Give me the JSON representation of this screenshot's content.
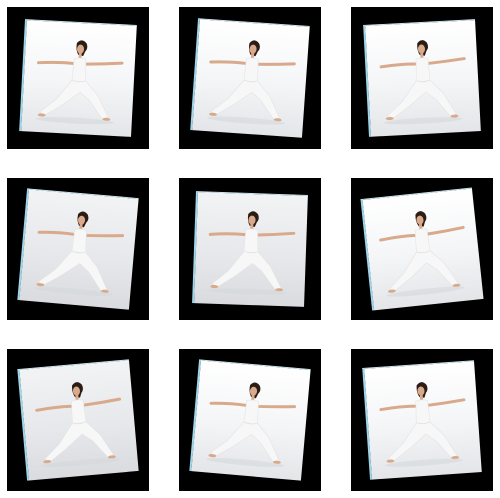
{
  "gallery": {
    "rows": 3,
    "columns": 3,
    "subject": "yoga-warrior-pose",
    "tiles": [
      {
        "rotation_deg": 3,
        "mirror": false,
        "tone": "light",
        "watermark": ""
      },
      {
        "rotation_deg": 4,
        "mirror": false,
        "tone": "light",
        "watermark": ""
      },
      {
        "rotation_deg": -3,
        "mirror": false,
        "tone": "light",
        "watermark": ""
      },
      {
        "rotation_deg": 5,
        "mirror": false,
        "tone": "gray",
        "watermark": ""
      },
      {
        "rotation_deg": 2,
        "mirror": false,
        "tone": "gray",
        "watermark": ""
      },
      {
        "rotation_deg": -6,
        "mirror": false,
        "tone": "light",
        "watermark": ""
      },
      {
        "rotation_deg": -5,
        "mirror": false,
        "tone": "gray",
        "watermark": ""
      },
      {
        "rotation_deg": 5,
        "mirror": false,
        "tone": "light",
        "watermark": ""
      },
      {
        "rotation_deg": -4,
        "mirror": false,
        "tone": "light",
        "watermark": ""
      }
    ]
  },
  "colors": {
    "tile_background": "#000000",
    "photo_border": "#9fd6ea",
    "outfit": "#f7f7f7",
    "skin": "#d8a98a",
    "hair": "#2b1d16"
  }
}
